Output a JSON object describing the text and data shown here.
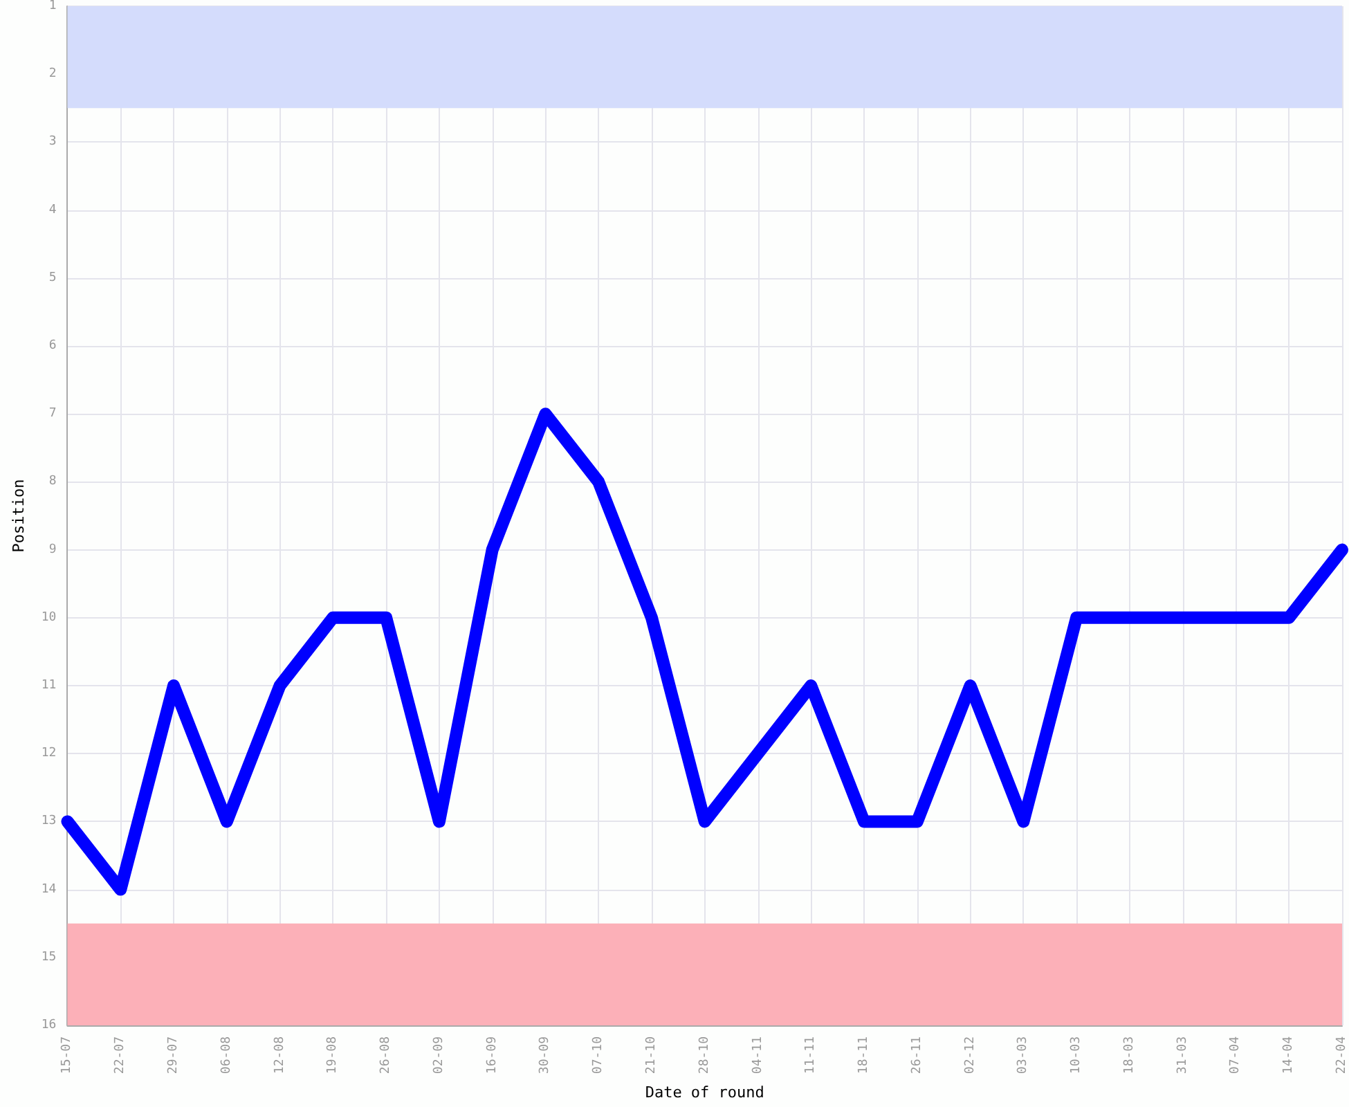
{
  "chart_data": {
    "type": "line",
    "xlabel": "Date of round",
    "ylabel": "Position",
    "categories": [
      "15-07",
      "22-07",
      "29-07",
      "06-08",
      "12-08",
      "19-08",
      "26-08",
      "02-09",
      "16-09",
      "30-09",
      "07-10",
      "21-10",
      "28-10",
      "04-11",
      "11-11",
      "18-11",
      "26-11",
      "02-12",
      "03-03",
      "10-03",
      "18-03",
      "31-03",
      "07-04",
      "14-04",
      "22-04"
    ],
    "series": [
      {
        "color": "#0000ff",
        "values": [
          13,
          14,
          11,
          13,
          11,
          10,
          10,
          13,
          9,
          7,
          8,
          10,
          13,
          12,
          11,
          13,
          13,
          11,
          13,
          10,
          10,
          10,
          10,
          10,
          9
        ]
      }
    ],
    "ylim": [
      16,
      1
    ],
    "yticks": [
      1,
      2,
      3,
      4,
      5,
      6,
      7,
      8,
      9,
      10,
      11,
      12,
      13,
      14,
      15,
      16
    ],
    "bands": [
      {
        "axis": "y",
        "from": 1,
        "to": 2.5,
        "color": "#d4dcfc"
      },
      {
        "axis": "y",
        "from": 14.5,
        "to": 16,
        "color": "#fcb0b8"
      }
    ],
    "grid": true,
    "line_style": "solid"
  }
}
